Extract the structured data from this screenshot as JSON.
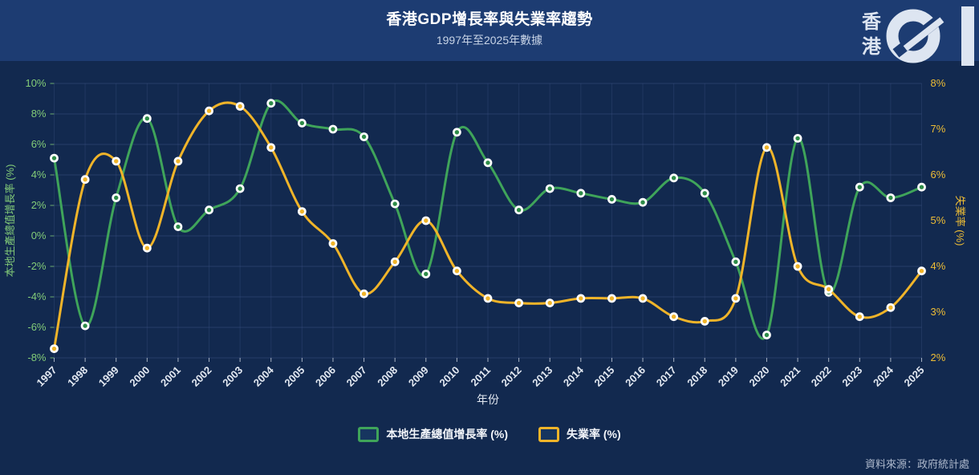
{
  "header": {
    "title": "香港GDP增長率與失業率趨勢",
    "subtitle": "1997年至2025年數據",
    "logo": {
      "char_top": "香",
      "char_bottom": "港",
      "mark": "01"
    }
  },
  "footer": {
    "source": "資料來源：政府統計處"
  },
  "colors": {
    "header_background": "#1d3c72",
    "body_background": "#12294f",
    "gridline": "#41578a",
    "x_tick_label": "#e3e9f2",
    "gdp_line": "#3fa45a",
    "gdp_point": "#2e8c48",
    "unemployment_line": "#f0b429",
    "unemployment_point": "#f0b429",
    "left_axis_text": "#83cc78",
    "right_axis_text": "#eebd35",
    "point_ring": "#ffffff"
  },
  "chart_data": {
    "type": "line",
    "title": "香港GDP增長率與失業率趨勢",
    "subtitle": "1997年至2025年數據",
    "xlabel": "年份",
    "grid": true,
    "legend_position": "bottom",
    "categories": [
      "1997",
      "1998",
      "1999",
      "2000",
      "2001",
      "2002",
      "2003",
      "2004",
      "2005",
      "2006",
      "2007",
      "2008",
      "2009",
      "2010",
      "2011",
      "2012",
      "2013",
      "2014",
      "2015",
      "2016",
      "2017",
      "2018",
      "2019",
      "2020",
      "2021",
      "2022",
      "2023",
      "2024",
      "2025"
    ],
    "series": [
      {
        "name": "本地生產總值增長率 (%)",
        "axis": "left",
        "color": "#3fa45a",
        "values": [
          5.1,
          -5.9,
          2.5,
          7.7,
          0.6,
          1.7,
          3.1,
          8.7,
          7.4,
          7.0,
          6.5,
          2.1,
          -2.5,
          6.8,
          4.8,
          1.7,
          3.1,
          2.8,
          2.4,
          2.2,
          3.8,
          2.8,
          -1.7,
          -6.5,
          6.4,
          -3.7,
          3.2,
          2.5,
          3.2
        ]
      },
      {
        "name": "失業率 (%)",
        "axis": "right",
        "color": "#f0b429",
        "values": [
          2.2,
          5.9,
          6.3,
          4.4,
          6.3,
          7.4,
          7.5,
          6.6,
          5.2,
          4.5,
          3.4,
          4.1,
          5.0,
          3.9,
          3.3,
          3.2,
          3.2,
          3.3,
          3.3,
          3.3,
          2.9,
          2.8,
          3.3,
          6.6,
          4.0,
          3.5,
          2.9,
          3.1,
          3.9
        ]
      }
    ],
    "left_axis": {
      "title": "本地生產總值增長率 (%)",
      "min": -8,
      "max": 10,
      "step": 2,
      "suffix": "%"
    },
    "right_axis": {
      "title": "失業率 (%)",
      "min": 2,
      "max": 8,
      "step": 1,
      "suffix": "%"
    }
  }
}
